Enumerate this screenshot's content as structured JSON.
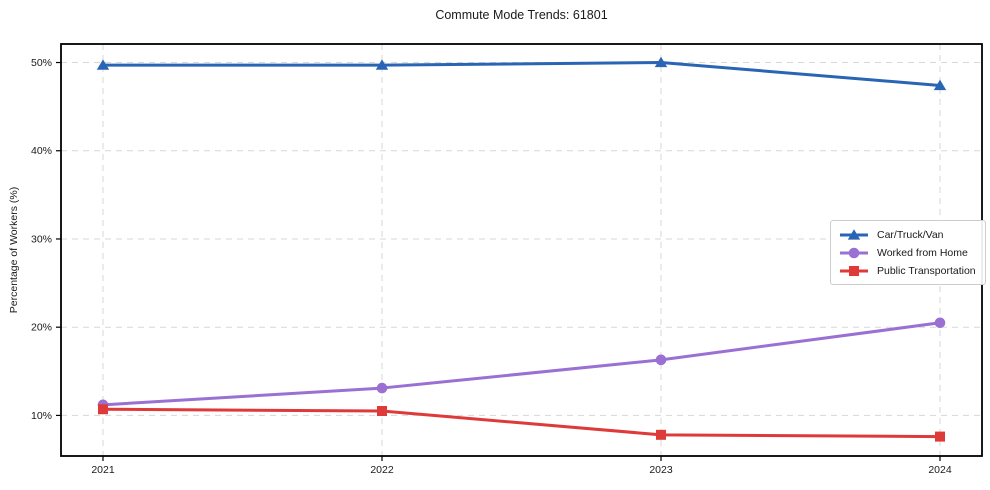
{
  "chart_data": {
    "type": "line",
    "title": "Commute Mode Trends: 61801",
    "xlabel": "",
    "ylabel": "Percentage of Workers (%)",
    "x": [
      "2021",
      "2022",
      "2023",
      "2024"
    ],
    "series": [
      {
        "name": "Car/Truck/Van",
        "color": "#2a64b5",
        "marker": "triangle",
        "values": [
          49.7,
          49.7,
          50.0,
          47.4
        ]
      },
      {
        "name": "Worked from Home",
        "color": "#9a70d2",
        "marker": "circle",
        "values": [
          11.2,
          13.1,
          16.3,
          20.5
        ]
      },
      {
        "name": "Public Transportation",
        "color": "#df3a3a",
        "marker": "square",
        "values": [
          10.7,
          10.5,
          7.8,
          7.6
        ]
      }
    ],
    "yticks": [
      10,
      20,
      30,
      40,
      50
    ],
    "ytick_labels": [
      "10%",
      "20%",
      "30%",
      "40%",
      "50%"
    ],
    "ylim": [
      5.4,
      52.1
    ],
    "grid": "dashed-both-axes",
    "grid_color": "#d7d7d7",
    "axes_color": "#000000",
    "background_color": "#ffffff",
    "legend_position": "center-right"
  }
}
